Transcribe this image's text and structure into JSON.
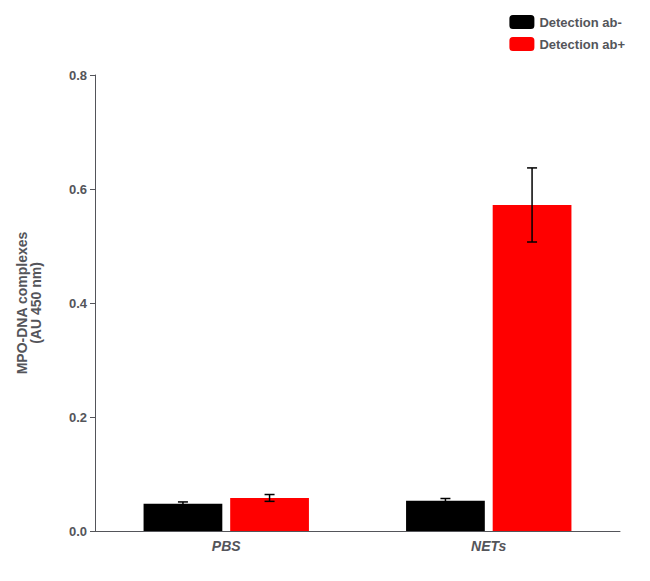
{
  "chart_data": {
    "type": "bar",
    "categories": [
      "PBS",
      "NETs"
    ],
    "series": [
      {
        "name": "Detection ab-",
        "color": "#000000",
        "values": [
          0.048,
          0.053
        ],
        "errors": [
          0.003,
          0.004
        ]
      },
      {
        "name": "Detection ab+",
        "color": "#ff0000",
        "values": [
          0.058,
          0.572
        ],
        "errors": [
          0.006,
          0.065
        ]
      }
    ],
    "ylabel": "MPO-DNA complexes\n(AU 450 nm)",
    "ylim": [
      0.0,
      0.8
    ],
    "yticks": [
      {
        "value": 0.0,
        "label": "0.0"
      },
      0.2,
      0.4,
      0.6,
      0.8
    ],
    "grid": false,
    "legend": "upper right"
  }
}
